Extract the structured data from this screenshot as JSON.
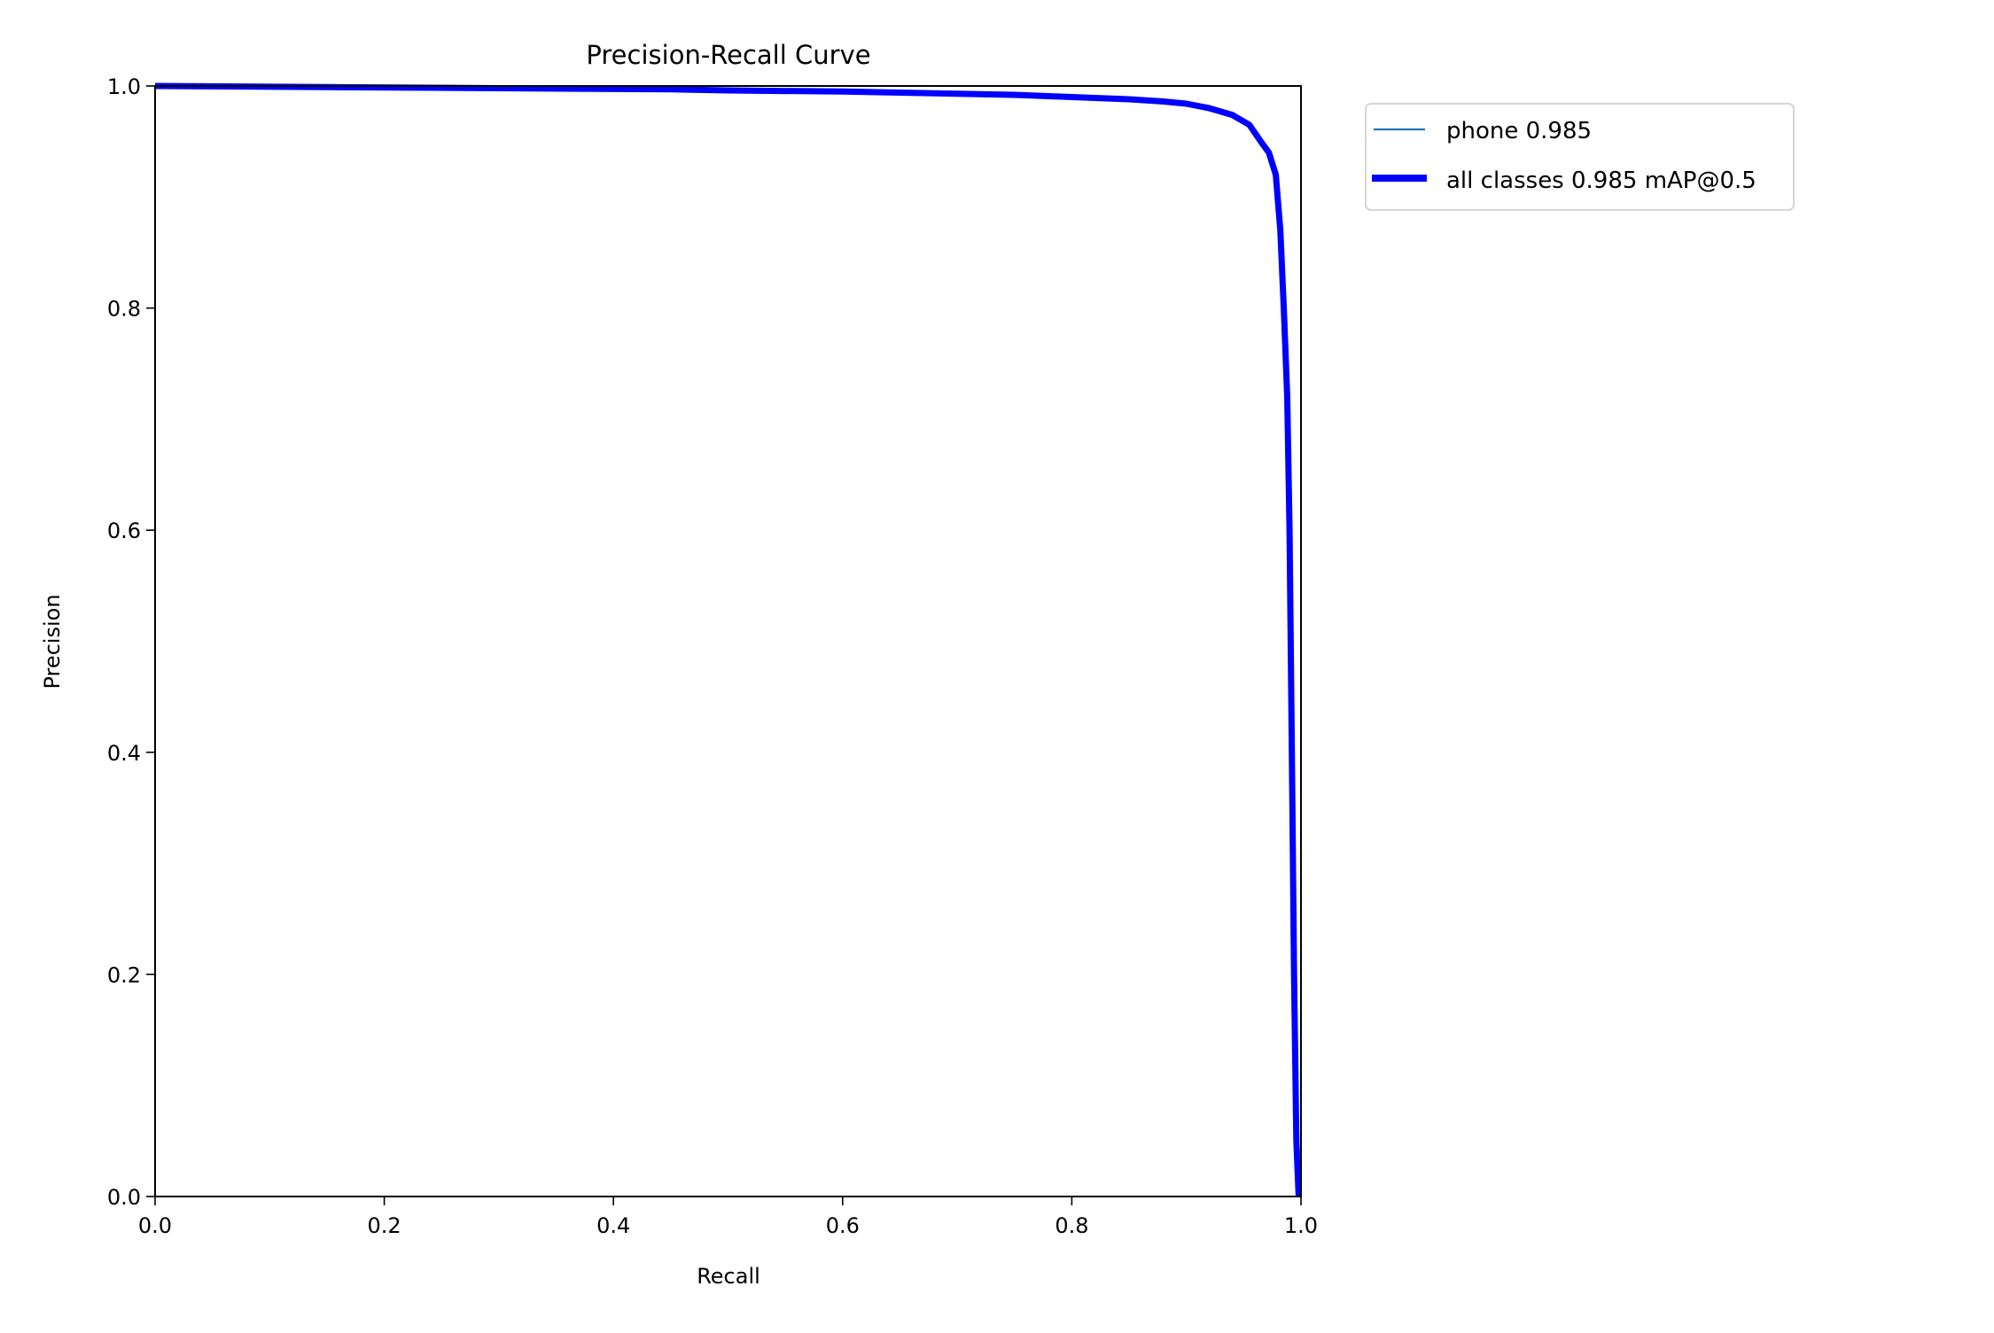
{
  "chart_data": {
    "type": "line",
    "title": "Precision-Recall Curve",
    "xlabel": "Recall",
    "ylabel": "Precision",
    "xlim": [
      0,
      1
    ],
    "ylim": [
      0,
      1
    ],
    "grid": false,
    "legend_placement": "outside-top-right",
    "xticks": [
      "0.0",
      "0.2",
      "0.4",
      "0.6",
      "0.8",
      "1.0"
    ],
    "yticks": [
      "0.0",
      "0.2",
      "0.4",
      "0.6",
      "0.8",
      "1.0"
    ],
    "series": [
      {
        "name": "phone 0.985",
        "color": "#1f77b4",
        "x": [
          0,
          0.15,
          0.3,
          0.45,
          0.5,
          0.6,
          0.65,
          0.7,
          0.75,
          0.8,
          0.85,
          0.88,
          0.9,
          0.92,
          0.94,
          0.955,
          0.965,
          0.972,
          0.978,
          0.982,
          0.985,
          0.988,
          0.99,
          0.992,
          0.994,
          0.996,
          0.998
        ],
        "y": [
          1.0,
          0.999,
          0.998,
          0.997,
          0.996,
          0.995,
          0.994,
          0.993,
          0.992,
          0.99,
          0.988,
          0.986,
          0.984,
          0.98,
          0.974,
          0.965,
          0.95,
          0.94,
          0.92,
          0.87,
          0.8,
          0.72,
          0.6,
          0.4,
          0.2,
          0.05,
          0.0
        ]
      },
      {
        "name": "all classes 0.985 mAP@0.5",
        "color": "#0000ff",
        "x": [
          0,
          0.15,
          0.3,
          0.45,
          0.5,
          0.6,
          0.65,
          0.7,
          0.75,
          0.8,
          0.85,
          0.88,
          0.9,
          0.92,
          0.94,
          0.955,
          0.965,
          0.972,
          0.978,
          0.982,
          0.985,
          0.988,
          0.99,
          0.992,
          0.994,
          0.996,
          0.998
        ],
        "y": [
          1.0,
          0.999,
          0.998,
          0.997,
          0.996,
          0.995,
          0.994,
          0.993,
          0.992,
          0.99,
          0.988,
          0.986,
          0.984,
          0.98,
          0.974,
          0.965,
          0.95,
          0.94,
          0.92,
          0.87,
          0.8,
          0.72,
          0.6,
          0.4,
          0.2,
          0.05,
          0.0
        ]
      }
    ]
  }
}
